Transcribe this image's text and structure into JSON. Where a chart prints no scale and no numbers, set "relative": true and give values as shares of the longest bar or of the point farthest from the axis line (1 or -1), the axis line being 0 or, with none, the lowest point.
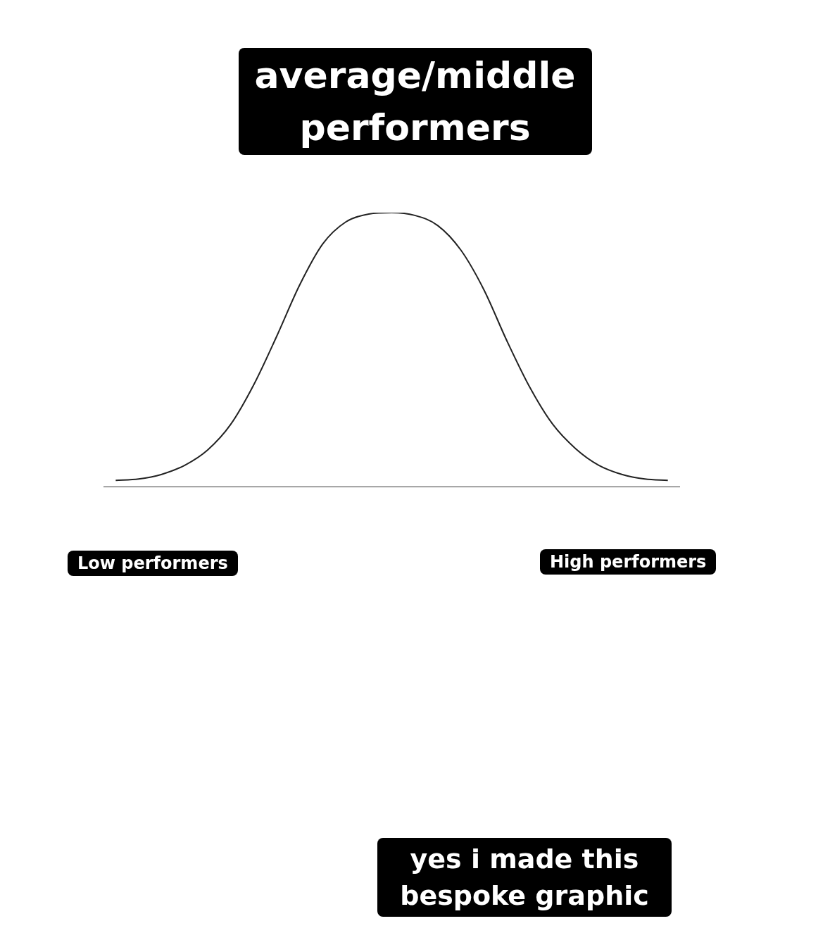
{
  "chart_data": {
    "type": "line",
    "relative": true,
    "title": "average/middle performers",
    "categories": [
      null,
      null,
      null,
      null,
      null,
      null,
      null,
      null,
      null,
      null,
      null,
      null,
      null,
      null,
      null,
      null,
      null,
      null,
      null,
      null,
      null,
      null,
      null,
      null,
      null
    ],
    "series": [
      {
        "color": "#222222",
        "values": [
          0.025,
          0.03,
          0.047,
          0.08,
          0.136,
          0.229,
          0.373,
          0.55,
          0.737,
          0.886,
          0.966,
          0.995,
          1,
          0.99,
          0.953,
          0.864,
          0.72,
          0.534,
          0.364,
          0.229,
          0.14,
          0.08,
          0.047,
          0.03,
          0.025
        ]
      }
    ],
    "marker": "none",
    "grid": false,
    "legend": false,
    "annotations": [
      "Low performers",
      "High performers",
      "yes i made this bespoke graphic"
    ]
  }
}
